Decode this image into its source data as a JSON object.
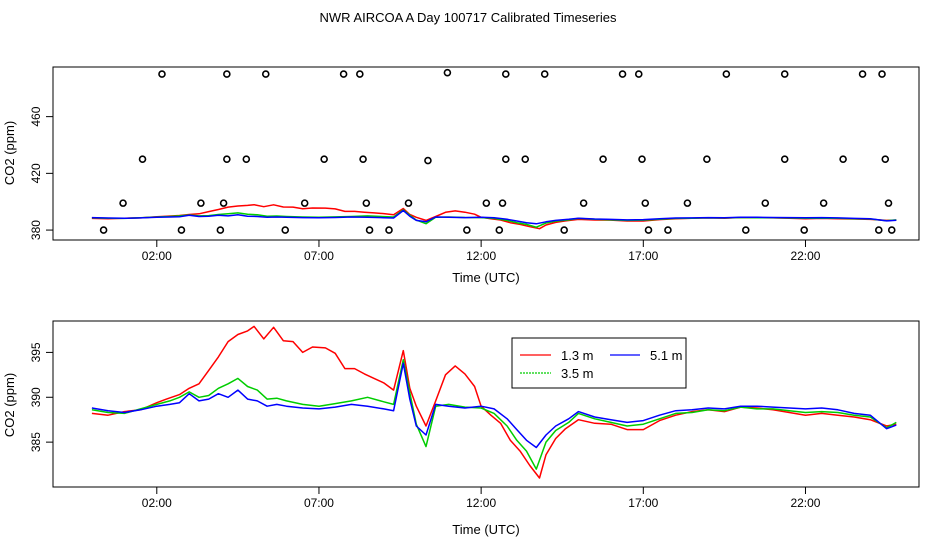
{
  "title": "NWR AIRCOA A  Day 100717  Calibrated Timeseries",
  "chart_data": [
    {
      "type": "scatter+line",
      "xlabel": "Time (UTC)",
      "ylabel": "CO2 (ppm)",
      "xlim": [
        -1.2,
        25.5
      ],
      "ylim": [
        373,
        495
      ],
      "xticks": [
        2,
        7,
        12,
        17,
        22
      ],
      "xtick_labels": [
        "02:00",
        "07:00",
        "12:00",
        "17:00",
        "22:00"
      ],
      "yticks": [
        380,
        420,
        460
      ],
      "ytick_labels": [
        "380",
        "420",
        "460"
      ],
      "calibration_points": [
        [
          0.36,
          380
        ],
        [
          0.96,
          399
        ],
        [
          1.56,
          430
        ],
        [
          2.16,
          490
        ],
        [
          2.76,
          380
        ],
        [
          3.36,
          399
        ],
        [
          3.96,
          380
        ],
        [
          4.06,
          399
        ],
        [
          4.16,
          430
        ],
        [
          4.16,
          490
        ],
        [
          4.76,
          430
        ],
        [
          5.36,
          490
        ],
        [
          5.96,
          380
        ],
        [
          6.56,
          399
        ],
        [
          7.16,
          430
        ],
        [
          7.76,
          490
        ],
        [
          8.26,
          490
        ],
        [
          8.36,
          430
        ],
        [
          8.46,
          399
        ],
        [
          8.56,
          380
        ],
        [
          9.16,
          380
        ],
        [
          9.76,
          399
        ],
        [
          10.36,
          429
        ],
        [
          10.96,
          491
        ],
        [
          11.56,
          380
        ],
        [
          12.16,
          399
        ],
        [
          12.56,
          380
        ],
        [
          12.66,
          399
        ],
        [
          12.76,
          430
        ],
        [
          12.76,
          490
        ],
        [
          13.36,
          430
        ],
        [
          13.96,
          490
        ],
        [
          14.56,
          380
        ],
        [
          15.16,
          399
        ],
        [
          15.76,
          430
        ],
        [
          16.36,
          490
        ],
        [
          16.86,
          490
        ],
        [
          16.96,
          430
        ],
        [
          17.06,
          399
        ],
        [
          17.16,
          380
        ],
        [
          17.76,
          380
        ],
        [
          18.36,
          399
        ],
        [
          18.96,
          430
        ],
        [
          19.56,
          490
        ],
        [
          20.16,
          380
        ],
        [
          20.76,
          399
        ],
        [
          21.36,
          430
        ],
        [
          21.36,
          490
        ],
        [
          21.96,
          380
        ],
        [
          22.56,
          399
        ],
        [
          23.16,
          430
        ],
        [
          23.76,
          490
        ],
        [
          24.26,
          380
        ],
        [
          24.36,
          490
        ],
        [
          24.46,
          430
        ],
        [
          24.56,
          399
        ],
        [
          24.66,
          380
        ]
      ]
    },
    {
      "type": "line",
      "xlabel": "Time (UTC)",
      "ylabel": "CO2 (ppm)",
      "xlim": [
        -1.2,
        25.5
      ],
      "ylim": [
        380.0,
        398.5
      ],
      "xticks": [
        2,
        7,
        12,
        17,
        22
      ],
      "xtick_labels": [
        "02:00",
        "07:00",
        "12:00",
        "17:00",
        "22:00"
      ],
      "yticks": [
        385,
        390,
        395
      ],
      "ytick_labels": [
        "385",
        "390",
        "395"
      ],
      "legend": [
        {
          "name": "1.3 m",
          "color": "#ff0000"
        },
        {
          "name": "3.5 m",
          "color": "#00cd00"
        },
        {
          "name": "5.1 m",
          "color": "#0000ff"
        }
      ],
      "series": [
        {
          "name": "1.3 m",
          "color": "#ff0000",
          "points": [
            [
              0,
              388.2
            ],
            [
              0.5,
              388.0
            ],
            [
              1,
              388.4
            ],
            [
              1.5,
              388.6
            ],
            [
              2,
              389.4
            ],
            [
              2.3,
              389.8
            ],
            [
              2.7,
              390.3
            ],
            [
              3,
              391.0
            ],
            [
              3.3,
              391.5
            ],
            [
              3.6,
              393.0
            ],
            [
              3.9,
              394.5
            ],
            [
              4.2,
              396.2
            ],
            [
              4.5,
              397.0
            ],
            [
              4.8,
              397.4
            ],
            [
              5,
              397.9
            ],
            [
              5.3,
              396.5
            ],
            [
              5.6,
              397.8
            ],
            [
              5.9,
              396.3
            ],
            [
              6.2,
              396.2
            ],
            [
              6.5,
              395.0
            ],
            [
              6.8,
              395.6
            ],
            [
              7.2,
              395.5
            ],
            [
              7.5,
              394.9
            ],
            [
              7.8,
              393.2
            ],
            [
              8.1,
              393.2
            ],
            [
              8.4,
              392.6
            ],
            [
              8.7,
              392.1
            ],
            [
              9.0,
              391.6
            ],
            [
              9.3,
              390.8
            ],
            [
              9.6,
              395.2
            ],
            [
              9.8,
              391.0
            ],
            [
              10.0,
              389.0
            ],
            [
              10.3,
              386.8
            ],
            [
              10.6,
              389.6
            ],
            [
              10.9,
              392.5
            ],
            [
              11.2,
              393.5
            ],
            [
              11.5,
              392.6
            ],
            [
              11.8,
              391.2
            ],
            [
              12.0,
              389.0
            ],
            [
              12.3,
              388.0
            ],
            [
              12.6,
              387.1
            ],
            [
              12.9,
              385.2
            ],
            [
              13.2,
              384.0
            ],
            [
              13.5,
              382.4
            ],
            [
              13.8,
              381.0
            ],
            [
              14.0,
              383.6
            ],
            [
              14.3,
              385.4
            ],
            [
              14.6,
              386.5
            ],
            [
              15.0,
              387.5
            ],
            [
              15.5,
              387.1
            ],
            [
              16.0,
              387.0
            ],
            [
              16.5,
              386.4
            ],
            [
              17.0,
              386.4
            ],
            [
              17.5,
              387.4
            ],
            [
              18.0,
              388.0
            ],
            [
              18.5,
              388.4
            ],
            [
              19.0,
              388.6
            ],
            [
              19.5,
              388.4
            ],
            [
              20.0,
              388.9
            ],
            [
              20.5,
              388.8
            ],
            [
              21.0,
              388.6
            ],
            [
              21.5,
              388.3
            ],
            [
              22.0,
              388.0
            ],
            [
              22.5,
              388.2
            ],
            [
              23.0,
              388.0
            ],
            [
              23.5,
              387.8
            ],
            [
              24.0,
              387.5
            ],
            [
              24.5,
              386.8
            ],
            [
              24.8,
              387.0
            ]
          ]
        },
        {
          "name": "3.5 m",
          "color": "#00cd00",
          "points": [
            [
              0,
              388.6
            ],
            [
              0.5,
              388.3
            ],
            [
              1,
              388.2
            ],
            [
              1.5,
              388.7
            ],
            [
              2,
              389.2
            ],
            [
              2.4,
              389.6
            ],
            [
              2.7,
              390.0
            ],
            [
              3,
              390.6
            ],
            [
              3.3,
              390.0
            ],
            [
              3.6,
              390.2
            ],
            [
              3.9,
              391.0
            ],
            [
              4.2,
              391.5
            ],
            [
              4.5,
              392.1
            ],
            [
              4.8,
              391.2
            ],
            [
              5.1,
              390.8
            ],
            [
              5.4,
              389.8
            ],
            [
              5.7,
              389.9
            ],
            [
              6.0,
              389.6
            ],
            [
              6.5,
              389.2
            ],
            [
              7.0,
              389.0
            ],
            [
              7.5,
              389.3
            ],
            [
              8.0,
              389.6
            ],
            [
              8.5,
              390.0
            ],
            [
              9.0,
              389.5
            ],
            [
              9.3,
              389.2
            ],
            [
              9.6,
              394.2
            ],
            [
              9.8,
              390.5
            ],
            [
              10.0,
              387.0
            ],
            [
              10.3,
              384.5
            ],
            [
              10.6,
              389.0
            ],
            [
              11.0,
              389.2
            ],
            [
              11.5,
              388.9
            ],
            [
              12.0,
              388.8
            ],
            [
              12.4,
              388.2
            ],
            [
              12.8,
              386.8
            ],
            [
              13.1,
              385.2
            ],
            [
              13.4,
              384.0
            ],
            [
              13.7,
              382.0
            ],
            [
              14.0,
              385.0
            ],
            [
              14.3,
              386.3
            ],
            [
              14.7,
              387.2
            ],
            [
              15.0,
              388.2
            ],
            [
              15.5,
              387.6
            ],
            [
              16.0,
              387.2
            ],
            [
              16.5,
              386.8
            ],
            [
              17.0,
              387.0
            ],
            [
              17.5,
              387.6
            ],
            [
              18.0,
              388.2
            ],
            [
              18.5,
              388.3
            ],
            [
              19.0,
              388.6
            ],
            [
              19.5,
              388.5
            ],
            [
              20.0,
              388.9
            ],
            [
              20.5,
              388.7
            ],
            [
              21.0,
              388.7
            ],
            [
              21.5,
              388.5
            ],
            [
              22.0,
              388.3
            ],
            [
              22.5,
              388.4
            ],
            [
              23.0,
              388.3
            ],
            [
              23.5,
              388.0
            ],
            [
              24.0,
              387.8
            ],
            [
              24.5,
              386.6
            ],
            [
              24.8,
              387.2
            ]
          ]
        },
        {
          "name": "5.1 m",
          "color": "#0000ff",
          "points": [
            [
              0,
              388.8
            ],
            [
              0.5,
              388.5
            ],
            [
              1,
              388.3
            ],
            [
              1.5,
              388.6
            ],
            [
              2,
              389.0
            ],
            [
              2.4,
              389.2
            ],
            [
              2.7,
              389.4
            ],
            [
              3,
              390.4
            ],
            [
              3.3,
              389.6
            ],
            [
              3.6,
              389.8
            ],
            [
              3.9,
              390.4
            ],
            [
              4.2,
              390.0
            ],
            [
              4.5,
              390.8
            ],
            [
              4.8,
              389.8
            ],
            [
              5.1,
              389.6
            ],
            [
              5.4,
              389.0
            ],
            [
              5.7,
              389.2
            ],
            [
              6.0,
              389.0
            ],
            [
              6.5,
              388.8
            ],
            [
              7.0,
              388.7
            ],
            [
              7.5,
              388.9
            ],
            [
              8.0,
              389.2
            ],
            [
              8.5,
              389.0
            ],
            [
              9.0,
              388.7
            ],
            [
              9.3,
              388.5
            ],
            [
              9.6,
              393.8
            ],
            [
              9.8,
              389.8
            ],
            [
              10.0,
              386.8
            ],
            [
              10.3,
              385.8
            ],
            [
              10.6,
              389.2
            ],
            [
              11.0,
              389.0
            ],
            [
              11.5,
              388.8
            ],
            [
              12.0,
              389.0
            ],
            [
              12.4,
              388.7
            ],
            [
              12.8,
              387.6
            ],
            [
              13.1,
              386.4
            ],
            [
              13.4,
              385.2
            ],
            [
              13.7,
              384.4
            ],
            [
              14.0,
              385.8
            ],
            [
              14.3,
              386.8
            ],
            [
              14.7,
              387.6
            ],
            [
              15.0,
              388.4
            ],
            [
              15.5,
              387.8
            ],
            [
              16.0,
              387.5
            ],
            [
              16.5,
              387.2
            ],
            [
              17.0,
              387.4
            ],
            [
              17.5,
              388.0
            ],
            [
              18.0,
              388.5
            ],
            [
              18.5,
              388.6
            ],
            [
              19.0,
              388.8
            ],
            [
              19.5,
              388.7
            ],
            [
              20.0,
              389.0
            ],
            [
              20.5,
              389.0
            ],
            [
              21.0,
              388.9
            ],
            [
              21.5,
              388.8
            ],
            [
              22.0,
              388.7
            ],
            [
              22.5,
              388.8
            ],
            [
              23.0,
              388.6
            ],
            [
              23.5,
              388.2
            ],
            [
              24.0,
              388.0
            ],
            [
              24.5,
              386.5
            ],
            [
              24.8,
              386.9
            ]
          ]
        }
      ]
    }
  ]
}
